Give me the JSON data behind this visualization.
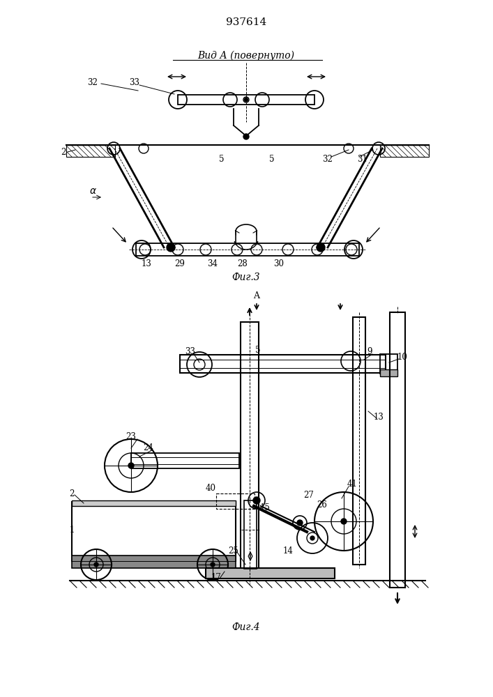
{
  "title": "937614",
  "fig3_title": "Вид А (повернуто)",
  "fig3_label": "Фиг.3",
  "fig4_label": "Фиг.4",
  "bg_color": "#ffffff",
  "line_color": "#000000",
  "line_width": 1.0,
  "fig_width": 7.07,
  "fig_height": 10.0
}
